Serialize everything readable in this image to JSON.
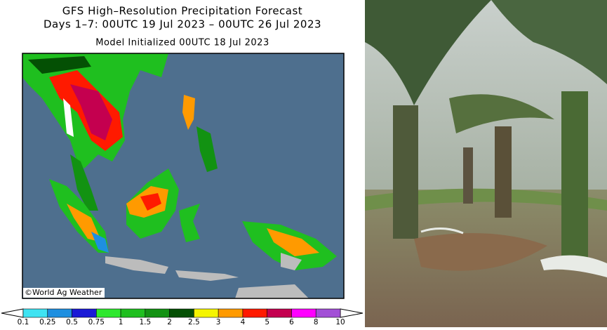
{
  "map": {
    "title": "GFS High–Resolution Precipitation Forecast",
    "subtitle": "Days 1–7: 00UTC 19 Jul 2023 – 00UTC 26 Jul 2023",
    "initialized": "Model Initialized 00UTC 18 Jul 2023",
    "credit": "©World Ag Weather",
    "colorbar": {
      "levels": [
        0.1,
        0.25,
        0.5,
        0.75,
        1,
        1.5,
        2,
        2.5,
        3,
        4,
        5,
        6,
        8,
        10
      ],
      "colors": [
        "#3fe3f2",
        "#1e8fe0",
        "#1a1ad6",
        "#2ee82e",
        "#1fbf1f",
        "#129212",
        "#045004",
        "#f5f500",
        "#ff9a00",
        "#ff1a00",
        "#c4004f",
        "#ff00ff",
        "#a24fd6"
      ]
    }
  }
}
